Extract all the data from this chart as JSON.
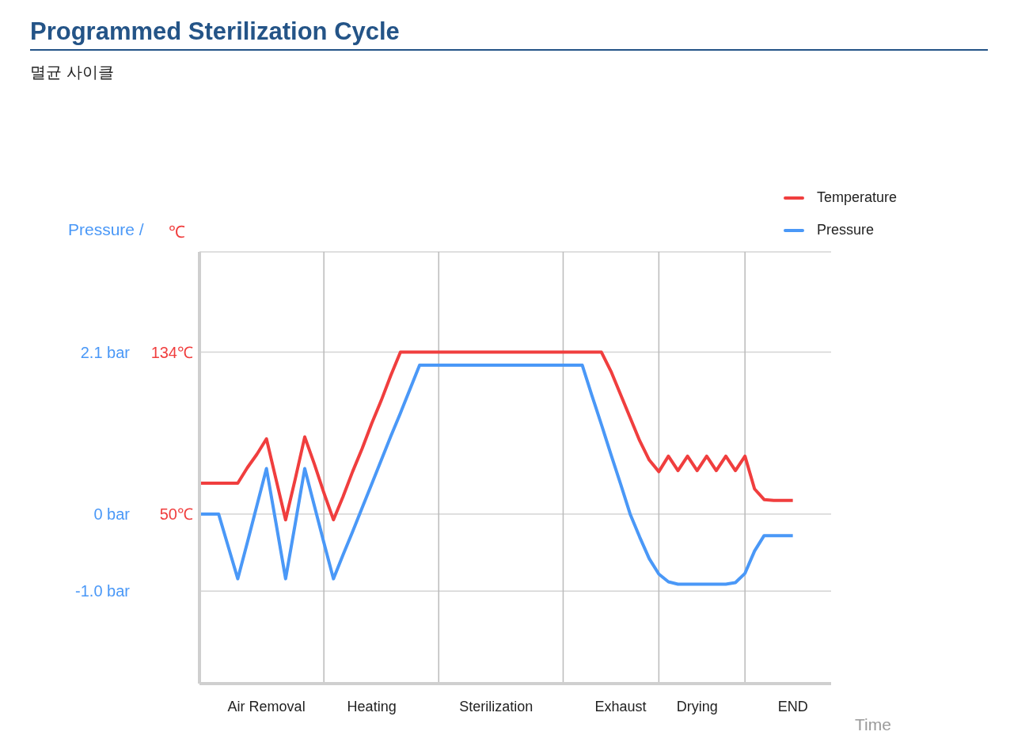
{
  "chart_data": {
    "type": "line",
    "title": "Programmed Sterilization Cycle",
    "subtitle": "멸균 사이클",
    "ylabel": "Pressure /",
    "y2label": "℃",
    "xlabel": "Time",
    "categories": [
      null,
      null,
      null,
      null,
      null,
      null,
      null,
      "Air Removal",
      null,
      null,
      null,
      null,
      null,
      null,
      null,
      null,
      null,
      null,
      "Heating",
      null,
      null,
      null,
      null,
      null,
      null,
      null,
      null,
      null,
      null,
      null,
      null,
      "Sterilization",
      null,
      null,
      null,
      null,
      null,
      null,
      null,
      null,
      null,
      null,
      null,
      null,
      "Exhaust",
      null,
      null,
      null,
      null,
      null,
      null,
      null,
      "Drying",
      null,
      null,
      null,
      null,
      null,
      null,
      null,
      null,
      null,
      "END",
      null,
      null,
      null,
      null
    ],
    "ylim": [
      -2.2,
      3.4
    ],
    "yticks": [
      {
        "value": -1.0,
        "label": "-1.0 bar"
      },
      {
        "value": 0,
        "label": "0 bar"
      },
      {
        "value": 2.1,
        "label": "2.1 bar"
      }
    ],
    "y2lim": [
      -38,
      186
    ],
    "y2ticks": [
      {
        "value": 50,
        "label": "50℃"
      },
      {
        "value": 134,
        "label": "134℃"
      }
    ],
    "grid": "y",
    "legend": "top right",
    "marker": "none",
    "line_style": "solid",
    "series": [
      {
        "name": "Temperature",
        "color": "#f03e3e",
        "axis": "y2",
        "values": [
          66,
          66,
          66,
          66,
          66,
          74,
          81,
          89,
          68,
          47,
          68,
          90,
          76,
          61,
          47,
          59,
          72,
          84,
          97,
          109,
          122,
          134,
          134,
          134,
          134,
          134,
          134,
          134,
          134,
          134,
          134,
          134,
          134,
          134,
          134,
          134,
          134,
          134,
          134,
          134,
          134,
          134,
          134,
          124,
          112,
          100,
          88,
          78,
          72,
          80,
          72.5,
          80,
          72.5,
          80,
          72.5,
          80,
          72.5,
          80,
          63,
          57.5,
          57,
          57,
          57,
          null,
          null,
          null,
          null
        ]
      },
      {
        "name": "Pressure",
        "color": "#4a98f7",
        "axis": "y",
        "values": [
          0,
          0,
          0,
          -0.42,
          -0.84,
          -0.37,
          0.11,
          0.59,
          -0.12,
          -0.84,
          -0.13,
          0.59,
          0.11,
          -0.37,
          -0.84,
          -0.53,
          -0.23,
          0.08,
          0.39,
          0.7,
          1.01,
          1.31,
          1.62,
          1.93,
          1.93,
          1.93,
          1.93,
          1.93,
          1.93,
          1.93,
          1.93,
          1.93,
          1.93,
          1.93,
          1.93,
          1.93,
          1.93,
          1.93,
          1.93,
          1.93,
          1.93,
          1.54,
          1.16,
          0.77,
          0.39,
          0,
          -0.3,
          -0.58,
          -0.78,
          -0.88,
          -0.91,
          -0.91,
          -0.91,
          -0.91,
          -0.91,
          -0.91,
          -0.89,
          -0.77,
          -0.48,
          -0.28,
          -0.28,
          -0.28,
          -0.28,
          null,
          null,
          null,
          null
        ]
      }
    ]
  }
}
